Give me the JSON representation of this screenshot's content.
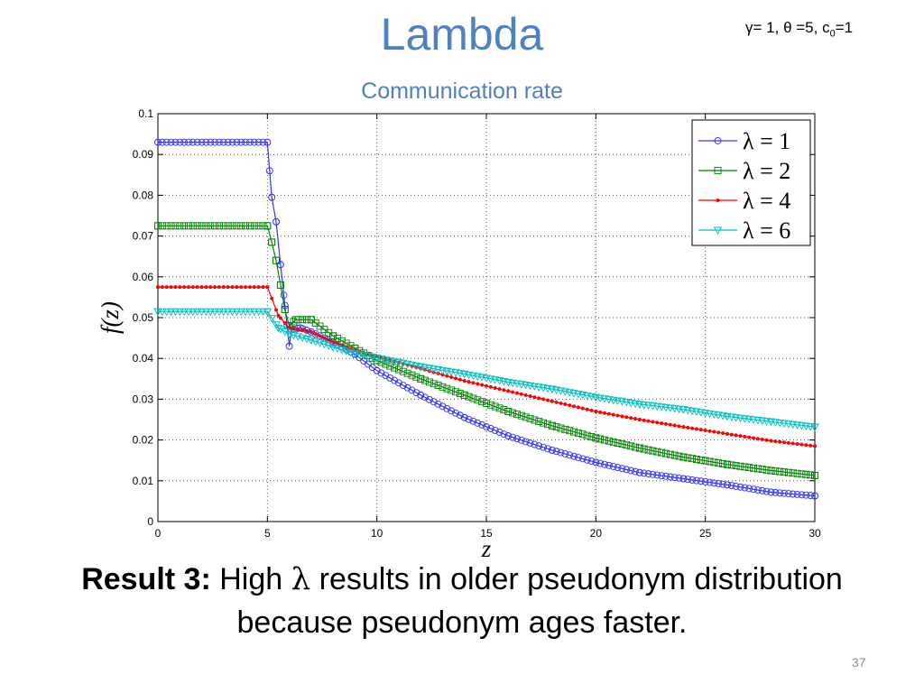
{
  "slide": {
    "title": "Lambda",
    "subtitle": "Communication rate",
    "params": {
      "gamma": "γ= 1,",
      "theta": "θ =5,",
      "c": "c",
      "c_sub": "0",
      "c_val": "=1"
    },
    "result": {
      "lead": "Result 3:",
      "part1": "High ",
      "lambda": "λ",
      "part2": " results in older pseudonym distribution",
      "line2": "because pseudonym ages faster."
    },
    "page_number": "37"
  },
  "chart_data": {
    "type": "line",
    "xlabel": "z",
    "ylabel": "f(z)",
    "xlim": [
      0,
      30
    ],
    "ylim": [
      0,
      0.1
    ],
    "xticks": [
      "0",
      "5",
      "10",
      "15",
      "20",
      "25",
      "30"
    ],
    "yticks": [
      "0",
      "0.01",
      "0.02",
      "0.03",
      "0.04",
      "0.05",
      "0.06",
      "0.07",
      "0.08",
      "0.09",
      "0.1"
    ],
    "grid": true,
    "legend_position": "top-right",
    "series": [
      {
        "name": "λ = 1",
        "color": "#3333ff",
        "marker": "circle",
        "points": [
          [
            0,
            0.093
          ],
          [
            5,
            0.093
          ],
          [
            5.1,
            0.086
          ],
          [
            5.2,
            0.0795
          ],
          [
            5.4,
            0.0735
          ],
          [
            5.6,
            0.063
          ],
          [
            5.75,
            0.0555
          ],
          [
            5.9,
            0.048
          ],
          [
            6.0,
            0.043
          ],
          [
            6.1,
            0.047
          ],
          [
            6.5,
            0.0475
          ],
          [
            7,
            0.0465
          ],
          [
            8,
            0.044
          ],
          [
            9,
            0.041
          ],
          [
            10,
            0.037
          ],
          [
            12,
            0.031
          ],
          [
            14,
            0.0255
          ],
          [
            16,
            0.021
          ],
          [
            18,
            0.0175
          ],
          [
            20,
            0.0145
          ],
          [
            22,
            0.012
          ],
          [
            24,
            0.0105
          ],
          [
            26,
            0.009
          ],
          [
            28,
            0.0072
          ],
          [
            30,
            0.0063
          ]
        ]
      },
      {
        "name": "λ = 2",
        "color": "#008000",
        "marker": "square",
        "points": [
          [
            0,
            0.0725
          ],
          [
            5,
            0.0725
          ],
          [
            5.2,
            0.0685
          ],
          [
            5.4,
            0.064
          ],
          [
            5.6,
            0.058
          ],
          [
            5.8,
            0.052
          ],
          [
            6.0,
            0.048
          ],
          [
            6.3,
            0.0495
          ],
          [
            7,
            0.0495
          ],
          [
            8,
            0.0455
          ],
          [
            9,
            0.0425
          ],
          [
            10,
            0.0395
          ],
          [
            12,
            0.035
          ],
          [
            14,
            0.031
          ],
          [
            16,
            0.027
          ],
          [
            18,
            0.0235
          ],
          [
            20,
            0.0205
          ],
          [
            22,
            0.018
          ],
          [
            24,
            0.0158
          ],
          [
            26,
            0.014
          ],
          [
            28,
            0.0125
          ],
          [
            30,
            0.0113
          ]
        ]
      },
      {
        "name": "λ = 4",
        "color": "#ff0000",
        "marker": "dot",
        "points": [
          [
            0,
            0.0575
          ],
          [
            5,
            0.0575
          ],
          [
            5.5,
            0.0505
          ],
          [
            6,
            0.0475
          ],
          [
            7,
            0.0465
          ],
          [
            8,
            0.044
          ],
          [
            9,
            0.042
          ],
          [
            10,
            0.0405
          ],
          [
            12,
            0.0375
          ],
          [
            14,
            0.0345
          ],
          [
            16,
            0.032
          ],
          [
            18,
            0.0295
          ],
          [
            20,
            0.027
          ],
          [
            22,
            0.025
          ],
          [
            24,
            0.0232
          ],
          [
            26,
            0.0215
          ],
          [
            28,
            0.0198
          ],
          [
            30,
            0.0185
          ]
        ]
      },
      {
        "name": "λ = 6",
        "color": "#00c0c0",
        "marker": "triangle-down",
        "points": [
          [
            0,
            0.0515
          ],
          [
            5,
            0.0515
          ],
          [
            5.5,
            0.0475
          ],
          [
            6,
            0.046
          ],
          [
            7,
            0.0445
          ],
          [
            8,
            0.0428
          ],
          [
            9,
            0.0412
          ],
          [
            10,
            0.0402
          ],
          [
            12,
            0.038
          ],
          [
            14,
            0.0362
          ],
          [
            16,
            0.0342
          ],
          [
            18,
            0.0325
          ],
          [
            20,
            0.0305
          ],
          [
            22,
            0.0288
          ],
          [
            24,
            0.0275
          ],
          [
            26,
            0.0258
          ],
          [
            28,
            0.0245
          ],
          [
            30,
            0.0232
          ]
        ]
      }
    ]
  }
}
